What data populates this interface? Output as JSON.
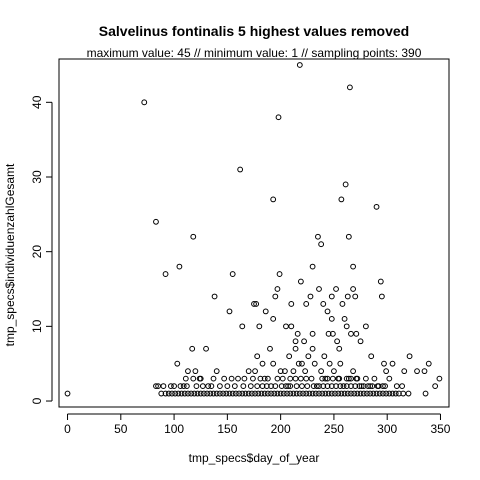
{
  "chart_data": {
    "type": "scatter",
    "title": "Salvelinus fontinalis  5 highest values removed",
    "subtitle": "maximum value: 45  //  minimum value: 1  // sampling points: 390",
    "xlabel": "tmp_specs$day_of_year",
    "ylabel": "tmp_specs$individuenzahlGesamt",
    "xlim": [
      -8,
      358
    ],
    "ylim": [
      -0.8,
      45.8
    ],
    "x_ticks": [
      0,
      50,
      100,
      150,
      200,
      250,
      300,
      350
    ],
    "y_ticks": [
      0,
      10,
      20,
      30,
      40
    ],
    "grid": false,
    "legend": "none",
    "marker": "open-circle",
    "colors": {
      "points": "#000000",
      "background": "#ffffff"
    },
    "points": [
      [
        0,
        1
      ],
      [
        72,
        40
      ],
      [
        83,
        24
      ],
      [
        92,
        17
      ],
      [
        105,
        18
      ],
      [
        118,
        22
      ],
      [
        162,
        31
      ],
      [
        193,
        27
      ],
      [
        198,
        38
      ],
      [
        218,
        45
      ],
      [
        235,
        22
      ],
      [
        238,
        21
      ],
      [
        248,
        14
      ],
      [
        257,
        27
      ],
      [
        261,
        29
      ],
      [
        264,
        22
      ],
      [
        265,
        42
      ],
      [
        268,
        18
      ],
      [
        270,
        14
      ],
      [
        290,
        26
      ],
      [
        294,
        16
      ],
      [
        295,
        14
      ],
      [
        280,
        10
      ],
      [
        268,
        15
      ],
      [
        263,
        14
      ],
      [
        258,
        13
      ],
      [
        252,
        15
      ],
      [
        249,
        9
      ],
      [
        245,
        9
      ],
      [
        240,
        13
      ],
      [
        236,
        15
      ],
      [
        230,
        18
      ],
      [
        228,
        14
      ],
      [
        224,
        13
      ],
      [
        219,
        16
      ],
      [
        216,
        9
      ],
      [
        210,
        13
      ],
      [
        205,
        10
      ],
      [
        199,
        17
      ],
      [
        197,
        15
      ],
      [
        195,
        14
      ],
      [
        193,
        11
      ],
      [
        186,
        12
      ],
      [
        180,
        10
      ],
      [
        177,
        13
      ],
      [
        175,
        13
      ],
      [
        164,
        10
      ],
      [
        155,
        17
      ],
      [
        152,
        12
      ],
      [
        138,
        14
      ],
      [
        130,
        7
      ],
      [
        117,
        7
      ],
      [
        113,
        4
      ],
      [
        103,
        5
      ],
      [
        100,
        2
      ],
      [
        97,
        2
      ],
      [
        90,
        2
      ],
      [
        85,
        2
      ],
      [
        83,
        2
      ],
      [
        120,
        4
      ],
      [
        125,
        3
      ],
      [
        132,
        2
      ],
      [
        140,
        4
      ],
      [
        147,
        3
      ],
      [
        160,
        3
      ],
      [
        170,
        4
      ],
      [
        183,
        5
      ],
      [
        190,
        7
      ],
      [
        200,
        4
      ],
      [
        214,
        8
      ],
      [
        222,
        8
      ],
      [
        226,
        6
      ],
      [
        230,
        7
      ],
      [
        244,
        12
      ],
      [
        248,
        11
      ],
      [
        253,
        8
      ],
      [
        260,
        11
      ],
      [
        262,
        10
      ],
      [
        266,
        9
      ],
      [
        271,
        9
      ],
      [
        275,
        8
      ],
      [
        285,
        6
      ],
      [
        297,
        5
      ],
      [
        305,
        5
      ],
      [
        316,
        4
      ],
      [
        321,
        6
      ],
      [
        328,
        4
      ],
      [
        335,
        4
      ],
      [
        339,
        5
      ],
      [
        345,
        2
      ],
      [
        349,
        3
      ],
      [
        188,
        3
      ],
      [
        193,
        5
      ],
      [
        197,
        3
      ],
      [
        202,
        3
      ],
      [
        207,
        2
      ],
      [
        212,
        4
      ],
      [
        217,
        5
      ],
      [
        223,
        4
      ],
      [
        229,
        3
      ],
      [
        234,
        2
      ],
      [
        238,
        4
      ],
      [
        242,
        3
      ],
      [
        246,
        5
      ],
      [
        250,
        4
      ],
      [
        255,
        3
      ],
      [
        259,
        2
      ],
      [
        264,
        3
      ],
      [
        268,
        4
      ],
      [
        272,
        3
      ],
      [
        276,
        2
      ],
      [
        280,
        3
      ],
      [
        284,
        2
      ],
      [
        288,
        3
      ],
      [
        292,
        2
      ],
      [
        298,
        2
      ],
      [
        302,
        3
      ],
      [
        309,
        2
      ],
      [
        314,
        2
      ],
      [
        88,
        1
      ],
      [
        92,
        1
      ],
      [
        95,
        1
      ],
      [
        98,
        1
      ],
      [
        101,
        1
      ],
      [
        104,
        1
      ],
      [
        107,
        1
      ],
      [
        110,
        1
      ],
      [
        113,
        1
      ],
      [
        116,
        1
      ],
      [
        119,
        1
      ],
      [
        122,
        1
      ],
      [
        125,
        1
      ],
      [
        128,
        1
      ],
      [
        131,
        1
      ],
      [
        134,
        1
      ],
      [
        137,
        1
      ],
      [
        140,
        1
      ],
      [
        143,
        1
      ],
      [
        146,
        1
      ],
      [
        149,
        1
      ],
      [
        152,
        1
      ],
      [
        155,
        1
      ],
      [
        158,
        1
      ],
      [
        161,
        1
      ],
      [
        164,
        1
      ],
      [
        167,
        1
      ],
      [
        170,
        1
      ],
      [
        173,
        1
      ],
      [
        176,
        1
      ],
      [
        179,
        1
      ],
      [
        182,
        1
      ],
      [
        185,
        1
      ],
      [
        188,
        1
      ],
      [
        191,
        1
      ],
      [
        194,
        1
      ],
      [
        197,
        1
      ],
      [
        200,
        1
      ],
      [
        203,
        1
      ],
      [
        206,
        1
      ],
      [
        209,
        1
      ],
      [
        212,
        1
      ],
      [
        215,
        1
      ],
      [
        218,
        1
      ],
      [
        221,
        1
      ],
      [
        224,
        1
      ],
      [
        227,
        1
      ],
      [
        230,
        1
      ],
      [
        233,
        1
      ],
      [
        236,
        1
      ],
      [
        239,
        1
      ],
      [
        242,
        1
      ],
      [
        245,
        1
      ],
      [
        248,
        1
      ],
      [
        251,
        1
      ],
      [
        254,
        1
      ],
      [
        257,
        1
      ],
      [
        260,
        1
      ],
      [
        263,
        1
      ],
      [
        266,
        1
      ],
      [
        269,
        1
      ],
      [
        272,
        1
      ],
      [
        275,
        1
      ],
      [
        278,
        1
      ],
      [
        281,
        1
      ],
      [
        284,
        1
      ],
      [
        287,
        1
      ],
      [
        290,
        1
      ],
      [
        293,
        1
      ],
      [
        296,
        1
      ],
      [
        299,
        1
      ],
      [
        302,
        1
      ],
      [
        305,
        1
      ],
      [
        308,
        1
      ],
      [
        311,
        1
      ],
      [
        315,
        1
      ],
      [
        320,
        1
      ],
      [
        336,
        1
      ],
      [
        106,
        2
      ],
      [
        109,
        2
      ],
      [
        112,
        2
      ],
      [
        121,
        2
      ],
      [
        127,
        2
      ],
      [
        135,
        2
      ],
      [
        143,
        2
      ],
      [
        150,
        2
      ],
      [
        157,
        2
      ],
      [
        165,
        2
      ],
      [
        172,
        2
      ],
      [
        178,
        2
      ],
      [
        183,
        2
      ],
      [
        187,
        2
      ],
      [
        191,
        2
      ],
      [
        195,
        2
      ],
      [
        201,
        2
      ],
      [
        205,
        2
      ],
      [
        209,
        2
      ],
      [
        215,
        2
      ],
      [
        220,
        2
      ],
      [
        225,
        2
      ],
      [
        231,
        2
      ],
      [
        236,
        2
      ],
      [
        240,
        2
      ],
      [
        244,
        2
      ],
      [
        248,
        2
      ],
      [
        252,
        2
      ],
      [
        256,
        2
      ],
      [
        262,
        2
      ],
      [
        266,
        2
      ],
      [
        270,
        2
      ],
      [
        274,
        2
      ],
      [
        278,
        2
      ],
      [
        282,
        2
      ],
      [
        286,
        2
      ],
      [
        291,
        2
      ],
      [
        296,
        2
      ],
      [
        111,
        3
      ],
      [
        118,
        3
      ],
      [
        124,
        3
      ],
      [
        137,
        3
      ],
      [
        154,
        3
      ],
      [
        166,
        3
      ],
      [
        174,
        3
      ],
      [
        181,
        3
      ],
      [
        185,
        3
      ],
      [
        209,
        3
      ],
      [
        214,
        3
      ],
      [
        219,
        3
      ],
      [
        224,
        3
      ],
      [
        239,
        3
      ],
      [
        244,
        3
      ],
      [
        249,
        3
      ],
      [
        254,
        3
      ],
      [
        262,
        3
      ],
      [
        266,
        3
      ],
      [
        271,
        3
      ],
      [
        299,
        4
      ],
      [
        176,
        4
      ],
      [
        204,
        4
      ],
      [
        220,
        5
      ],
      [
        232,
        5
      ],
      [
        256,
        5
      ],
      [
        178,
        6
      ],
      [
        208,
        6
      ],
      [
        241,
        6
      ],
      [
        214,
        7
      ],
      [
        255,
        7
      ],
      [
        230,
        9
      ],
      [
        210,
        10
      ]
    ]
  }
}
